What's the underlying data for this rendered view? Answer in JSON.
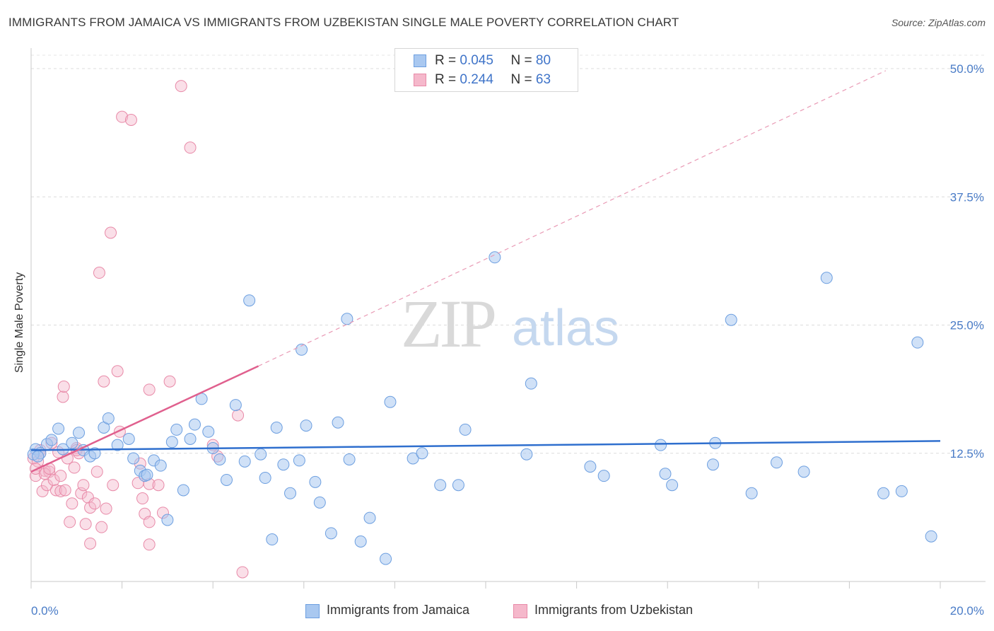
{
  "title": "IMMIGRANTS FROM JAMAICA VS IMMIGRANTS FROM UZBEKISTAN SINGLE MALE POVERTY CORRELATION CHART",
  "source": "Source: ZipAtlas.com",
  "watermark": {
    "zip": "ZIP",
    "atlas": "atlas"
  },
  "colors": {
    "blue_fill": "#a9c8f0",
    "blue_line": "#2f6fce",
    "pink_fill": "#f5b8cb",
    "pink_line": "#e0608e",
    "tick": "#4a7cc7"
  },
  "legend": {
    "r_label": "R =",
    "n_label": "N =",
    "rows": [
      {
        "r": "0.045",
        "n": "80"
      },
      {
        "r": "0.244",
        "n": "63"
      }
    ]
  },
  "chart_data": {
    "type": "scatter",
    "title": "IMMIGRANTS FROM JAMAICA VS IMMIGRANTS FROM UZBEKISTAN SINGLE MALE POVERTY CORRELATION CHART",
    "xlabel": "",
    "ylabel": "Single Male Poverty",
    "xlim": [
      0,
      20
    ],
    "ylim": [
      0,
      51.5
    ],
    "x_tick_labels": [
      "0.0%",
      "20.0%"
    ],
    "y_ticks": [
      12.5,
      25.0,
      37.5,
      50.0
    ],
    "y_tick_labels": [
      "12.5%",
      "25.0%",
      "37.5%",
      "50.0%"
    ],
    "series": [
      {
        "name": "Immigrants from Jamaica",
        "color": "#a9c8f0",
        "r": 0.045,
        "n": 80,
        "trend": {
          "x": [
            0,
            20
          ],
          "y": [
            12.8,
            13.7
          ],
          "style": "solid"
        },
        "points": [
          [
            0.1,
            12.9
          ],
          [
            0.2,
            12.5
          ],
          [
            0.35,
            13.4
          ],
          [
            0.45,
            13.8
          ],
          [
            0.6,
            14.9
          ],
          [
            0.7,
            12.9
          ],
          [
            0.9,
            13.5
          ],
          [
            1.05,
            14.5
          ],
          [
            1.15,
            12.8
          ],
          [
            1.3,
            12.2
          ],
          [
            1.4,
            12.5
          ],
          [
            1.6,
            15.0
          ],
          [
            1.7,
            15.9
          ],
          [
            1.9,
            13.3
          ],
          [
            2.15,
            13.9
          ],
          [
            2.25,
            12.0
          ],
          [
            2.4,
            10.8
          ],
          [
            2.5,
            10.3
          ],
          [
            2.55,
            10.4
          ],
          [
            2.7,
            11.8
          ],
          [
            2.85,
            11.3
          ],
          [
            3.0,
            6.0
          ],
          [
            3.1,
            13.6
          ],
          [
            3.2,
            14.8
          ],
          [
            3.35,
            8.9
          ],
          [
            3.5,
            13.9
          ],
          [
            3.6,
            15.3
          ],
          [
            3.75,
            17.8
          ],
          [
            3.9,
            14.6
          ],
          [
            4.0,
            13.0
          ],
          [
            4.15,
            11.9
          ],
          [
            4.3,
            9.9
          ],
          [
            4.5,
            17.2
          ],
          [
            4.7,
            11.7
          ],
          [
            4.8,
            27.4
          ],
          [
            5.05,
            12.4
          ],
          [
            5.15,
            10.1
          ],
          [
            5.3,
            4.1
          ],
          [
            5.4,
            15.0
          ],
          [
            5.55,
            11.4
          ],
          [
            5.7,
            8.6
          ],
          [
            5.9,
            11.8
          ],
          [
            5.95,
            22.6
          ],
          [
            6.05,
            15.2
          ],
          [
            6.25,
            9.7
          ],
          [
            6.35,
            7.7
          ],
          [
            6.6,
            4.7
          ],
          [
            6.75,
            15.5
          ],
          [
            6.95,
            25.6
          ],
          [
            7.0,
            11.9
          ],
          [
            7.25,
            3.9
          ],
          [
            7.45,
            6.2
          ],
          [
            7.8,
            2.2
          ],
          [
            7.9,
            17.5
          ],
          [
            8.4,
            12.0
          ],
          [
            8.6,
            12.5
          ],
          [
            9.0,
            9.4
          ],
          [
            9.4,
            9.4
          ],
          [
            9.55,
            14.8
          ],
          [
            10.2,
            31.6
          ],
          [
            10.9,
            12.4
          ],
          [
            11.0,
            19.3
          ],
          [
            12.3,
            11.2
          ],
          [
            12.6,
            10.3
          ],
          [
            13.85,
            13.3
          ],
          [
            13.95,
            10.5
          ],
          [
            14.1,
            9.4
          ],
          [
            15.0,
            11.4
          ],
          [
            15.05,
            13.5
          ],
          [
            15.4,
            25.5
          ],
          [
            15.85,
            8.6
          ],
          [
            16.4,
            11.6
          ],
          [
            17.0,
            10.7
          ],
          [
            17.5,
            29.6
          ],
          [
            18.75,
            8.6
          ],
          [
            19.15,
            8.8
          ],
          [
            19.5,
            23.3
          ],
          [
            19.8,
            4.4
          ],
          [
            0.05,
            12.4
          ],
          [
            0.15,
            12.2
          ]
        ]
      },
      {
        "name": "Immigrants from Uzbekistan",
        "color": "#f5b8cb",
        "r": 0.244,
        "n": 63,
        "trend": {
          "x": [
            0,
            5.0
          ],
          "y": [
            10.7,
            21.0
          ],
          "style": "solid"
        },
        "trend_extension": {
          "x": [
            5.0,
            18.8
          ],
          "y": [
            21.0,
            49.8
          ],
          "style": "dashed"
        },
        "points": [
          [
            0.05,
            12.0
          ],
          [
            0.1,
            10.3
          ],
          [
            0.15,
            11.7
          ],
          [
            0.2,
            12.8
          ],
          [
            0.25,
            8.8
          ],
          [
            0.3,
            10.8
          ],
          [
            0.35,
            9.4
          ],
          [
            0.4,
            10.7
          ],
          [
            0.45,
            13.5
          ],
          [
            0.5,
            9.9
          ],
          [
            0.55,
            8.9
          ],
          [
            0.6,
            12.6
          ],
          [
            0.65,
            10.3
          ],
          [
            0.65,
            8.8
          ],
          [
            0.7,
            18.0
          ],
          [
            0.72,
            19.0
          ],
          [
            0.75,
            8.9
          ],
          [
            0.8,
            12.0
          ],
          [
            0.85,
            5.8
          ],
          [
            0.9,
            7.6
          ],
          [
            0.95,
            11.1
          ],
          [
            1.0,
            13.0
          ],
          [
            1.05,
            12.5
          ],
          [
            1.1,
            8.6
          ],
          [
            1.15,
            9.4
          ],
          [
            1.2,
            5.6
          ],
          [
            1.25,
            8.2
          ],
          [
            1.3,
            3.7
          ],
          [
            1.3,
            7.2
          ],
          [
            1.4,
            7.6
          ],
          [
            1.45,
            10.7
          ],
          [
            1.5,
            30.1
          ],
          [
            1.55,
            5.3
          ],
          [
            1.6,
            19.5
          ],
          [
            1.65,
            7.1
          ],
          [
            1.75,
            34.0
          ],
          [
            1.8,
            9.4
          ],
          [
            1.9,
            20.5
          ],
          [
            1.95,
            14.6
          ],
          [
            2.0,
            45.3
          ],
          [
            2.2,
            45.0
          ],
          [
            2.35,
            9.6
          ],
          [
            2.4,
            11.5
          ],
          [
            2.5,
            6.6
          ],
          [
            2.6,
            9.5
          ],
          [
            2.45,
            8.1
          ],
          [
            2.6,
            5.8
          ],
          [
            2.6,
            18.7
          ],
          [
            2.6,
            3.6
          ],
          [
            2.8,
            9.4
          ],
          [
            2.9,
            6.7
          ],
          [
            3.05,
            19.5
          ],
          [
            3.3,
            48.3
          ],
          [
            3.5,
            42.3
          ],
          [
            4.0,
            13.3
          ],
          [
            4.1,
            12.2
          ],
          [
            4.55,
            16.2
          ],
          [
            4.65,
            0.9
          ],
          [
            0.1,
            11.0
          ],
          [
            0.3,
            10.5
          ],
          [
            0.4,
            11.0
          ],
          [
            1.0,
            12.8
          ],
          [
            0.2,
            12.5
          ]
        ]
      }
    ],
    "legend_position": "top-center"
  }
}
